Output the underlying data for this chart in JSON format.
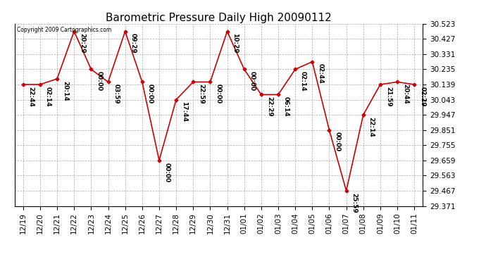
{
  "title": "Barometric Pressure Daily High 20090112",
  "copyright": "Copyright 2009 Cartographics.com",
  "dates": [
    "12/19",
    "12/20",
    "12/21",
    "12/22",
    "12/23",
    "12/24",
    "12/25",
    "12/26",
    "12/27",
    "12/28",
    "12/29",
    "12/30",
    "12/31",
    "01/01",
    "01/02",
    "01/03",
    "01/04",
    "01/05",
    "01/06",
    "01/07",
    "01/08",
    "01/09",
    "01/10",
    "01/11"
  ],
  "values": [
    30.139,
    30.139,
    30.175,
    30.475,
    30.235,
    30.155,
    30.475,
    30.155,
    29.659,
    30.043,
    30.155,
    30.155,
    30.475,
    30.235,
    30.075,
    30.075,
    30.235,
    30.283,
    29.851,
    29.467,
    29.947,
    30.139,
    30.155,
    30.139
  ],
  "annotations": [
    "22:44",
    "02:14",
    "20:14",
    "20:29",
    "00:00",
    "03:59",
    "09:29",
    "00:00",
    "00:00",
    "17:44",
    "22:59",
    "00:00",
    "10:29",
    "00:00",
    "22:29",
    "06:14",
    "02:14",
    "02:44",
    "00:00",
    "25:59",
    "22:14",
    "21:59",
    "20:44",
    "02:29"
  ],
  "line_color": "#cc0000",
  "marker_color": "#cc0000",
  "bg_color": "#ffffff",
  "grid_color": "#aaaaaa",
  "ymin": 29.371,
  "ymax": 30.523,
  "yticks": [
    29.371,
    29.467,
    29.563,
    29.659,
    29.755,
    29.851,
    29.947,
    30.043,
    30.139,
    30.235,
    30.331,
    30.427,
    30.523
  ],
  "title_fontsize": 11,
  "annotation_fontsize": 6.5,
  "tick_fontsize": 7.5,
  "ylabel_fontsize": 7.5
}
